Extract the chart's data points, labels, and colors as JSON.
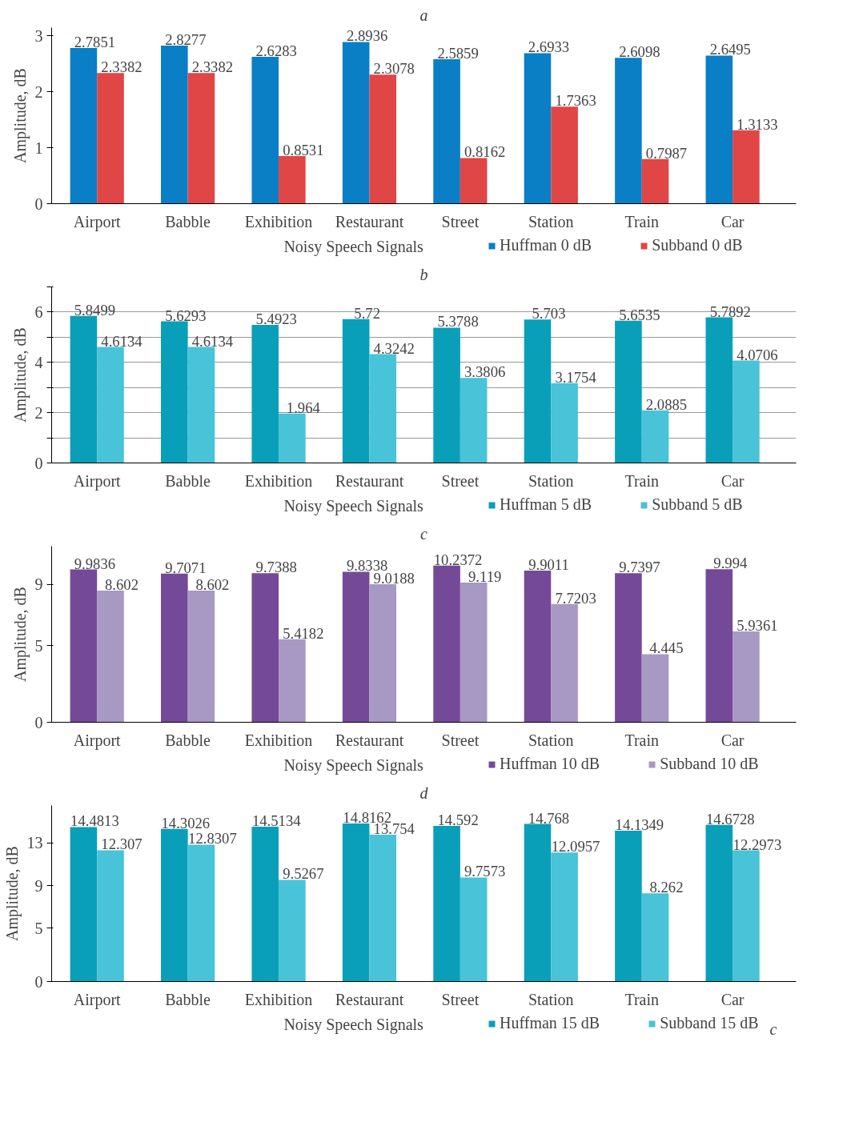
{
  "chart_data": [
    {
      "type": "bar",
      "title": "a",
      "xlabel": "Noisy Speech Signals",
      "ylabel": "Amplitude, dB",
      "categories": [
        "Airport",
        "Babble",
        "Exhibition",
        "Restaurant",
        "Street",
        "Station",
        "Train",
        "Car"
      ],
      "series": [
        {
          "name": "Huffman 0 dB",
          "color": "#0a7fc6",
          "values": [
            2.7851,
            2.8277,
            2.6283,
            2.8936,
            2.5859,
            2.6933,
            2.6098,
            2.6495
          ]
        },
        {
          "name": "Subband 0 dB",
          "color": "#e04646",
          "values": [
            2.3382,
            2.3382,
            0.8531,
            2.3078,
            0.8162,
            1.7363,
            0.7987,
            1.3133
          ]
        }
      ],
      "ylim": [
        0,
        3.15
      ],
      "yticks": [
        0,
        1,
        2,
        3
      ],
      "grid": false,
      "legend": "bottom",
      "data_labels": true
    },
    {
      "type": "bar",
      "title": "b",
      "xlabel": "Noisy Speech Signals",
      "ylabel": "Amplitude, dB",
      "categories": [
        "Airport",
        "Babble",
        "Exhibition",
        "Restaurant",
        "Street",
        "Station",
        "Train",
        "Car"
      ],
      "series": [
        {
          "name": "Huffman 5 dB",
          "color": "#0a9fb8",
          "values": [
            5.8499,
            5.6293,
            5.4923,
            5.72,
            5.3788,
            5.703,
            5.6535,
            5.7892
          ]
        },
        {
          "name": "Subband 5 dB",
          "color": "#48c3d8",
          "values": [
            4.6134,
            4.6134,
            1.964,
            4.3242,
            3.3806,
            3.1754,
            2.0885,
            4.0706
          ]
        }
      ],
      "ylim": [
        0,
        7
      ],
      "yticks": [
        0,
        {
          "value": 1,
          "label": null
        },
        2,
        {
          "value": 3,
          "label": null
        },
        4,
        {
          "value": 5,
          "label": null
        },
        6,
        {
          "value": 7,
          "label": null
        }
      ],
      "grid": "y",
      "legend": "bottom",
      "data_labels": true
    },
    {
      "type": "bar",
      "title": "c",
      "xlabel": "Noisy Speech Signals",
      "ylabel": "Amplitude, dB",
      "categories": [
        "Airport",
        "Babble",
        "Exhibition",
        "Restaurant",
        "Street",
        "Station",
        "Train",
        "Car"
      ],
      "series": [
        {
          "name": "Huffman 10 dB",
          "color": "#744a98",
          "values": [
            9.9836,
            9.7071,
            9.7388,
            9.8338,
            10.2372,
            9.9011,
            9.7397,
            9.994
          ]
        },
        {
          "name": "Subband 10 dB",
          "color": "#a898c4",
          "values": [
            8.602,
            8.602,
            5.4182,
            9.0188,
            9.119,
            7.7203,
            4.445,
            5.9361
          ]
        }
      ],
      "ylim": [
        0,
        11.5
      ],
      "yticks": [
        0,
        5,
        9
      ],
      "grid": false,
      "legend": "bottom",
      "data_labels": true
    },
    {
      "type": "bar",
      "title": "d",
      "xlabel": "Noisy Speech Signals",
      "ylabel": "Amplitude, dB",
      "categories": [
        "Airport",
        "Babble",
        "Exhibition",
        "Restaurant",
        "Street",
        "Station",
        "Train",
        "Car"
      ],
      "series": [
        {
          "name": "Huffman 15 dB",
          "color": "#0a9fb8",
          "values": [
            14.4813,
            14.3026,
            14.5134,
            14.8162,
            14.592,
            14.768,
            14.1349,
            14.6728
          ]
        },
        {
          "name": "Subband 15 dB",
          "color": "#48c3d8",
          "values": [
            12.307,
            12.8307,
            9.5267,
            13.754,
            9.7573,
            12.0957,
            8.262,
            12.2973
          ]
        }
      ],
      "ylim": [
        0,
        16.5
      ],
      "yticks": [
        0,
        5,
        9,
        13
      ],
      "grid": false,
      "legend": "bottom",
      "data_labels": true,
      "annotations": [
        "c"
      ]
    }
  ]
}
